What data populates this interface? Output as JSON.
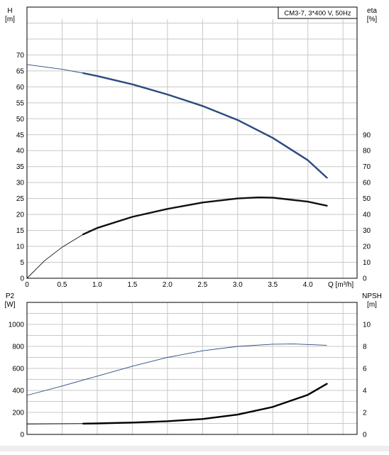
{
  "chart_data": [
    {
      "type": "line",
      "title": "CM3-7, 3*400 V, 50Hz",
      "xlabel": "Q [m³/h]",
      "ylabel_left": "H",
      "ylabel_left_unit": "[m]",
      "ylabel_right": "eta",
      "ylabel_right_unit": "[%]",
      "x_ticks": [
        "0",
        "0.5",
        "1.0",
        "1.5",
        "2.0",
        "2.5",
        "3.0",
        "3.5",
        "4.0"
      ],
      "y_left_ticks": [
        "0",
        "5",
        "10",
        "15",
        "20",
        "25",
        "30",
        "35",
        "40",
        "45",
        "50",
        "55",
        "60",
        "65",
        "70"
      ],
      "y_right_ticks": [
        "0",
        "10",
        "20",
        "30",
        "40",
        "50",
        "60",
        "70",
        "80",
        "90"
      ],
      "xlim": [
        0,
        4.7
      ],
      "ylim_left": [
        0,
        85
      ],
      "ylim_right": [
        0,
        170
      ],
      "grid": true,
      "series": [
        {
          "axis": "left",
          "color": "#2b4a80",
          "x": [
            0,
            0.5,
            0.8,
            1.0,
            1.5,
            2.0,
            2.5,
            3.0,
            3.5,
            4.0,
            4.27
          ],
          "y": [
            67,
            65.5,
            64.3,
            63.4,
            60.8,
            57.6,
            54,
            49.6,
            44,
            37,
            31.5
          ],
          "thick_from": 0.8
        },
        {
          "axis": "right",
          "color": "#111111",
          "x": [
            0,
            0.25,
            0.5,
            0.8,
            1.0,
            1.5,
            2.0,
            2.5,
            3.0,
            3.3,
            3.5,
            4.0,
            4.27
          ],
          "y": [
            0,
            11,
            19.5,
            27.5,
            31.5,
            38.5,
            43.5,
            47.5,
            50,
            50.7,
            50.5,
            48,
            45.5
          ],
          "thick_from": 0.8
        }
      ]
    },
    {
      "type": "line",
      "xlabel": "",
      "ylabel_left": "P2",
      "ylabel_left_unit": "[W]",
      "ylabel_right": "NPSH",
      "ylabel_right_unit": "[m]",
      "y_left_ticks": [
        "0",
        "200",
        "400",
        "600",
        "800",
        "1000"
      ],
      "y_right_ticks": [
        "0",
        "2",
        "4",
        "6",
        "8",
        "10"
      ],
      "xlim": [
        0,
        4.7
      ],
      "ylim_left": [
        0,
        1200
      ],
      "ylim_right": [
        0,
        12
      ],
      "grid": true,
      "series": [
        {
          "axis": "left",
          "color": "#2b4a80",
          "x": [
            0,
            0.5,
            1.0,
            1.5,
            2.0,
            2.5,
            3.0,
            3.5,
            3.8,
            4.27
          ],
          "y": [
            355,
            440,
            530,
            620,
            700,
            760,
            800,
            820,
            822,
            810
          ],
          "thick_from": 99
        },
        {
          "axis": "right",
          "color": "#000000",
          "x": [
            0,
            0.8,
            1.0,
            1.5,
            2.0,
            2.5,
            3.0,
            3.5,
            4.0,
            4.27
          ],
          "y": [
            0.95,
            0.98,
            1.0,
            1.08,
            1.2,
            1.4,
            1.8,
            2.5,
            3.6,
            4.6
          ],
          "thick_from": 0.8
        }
      ]
    }
  ]
}
